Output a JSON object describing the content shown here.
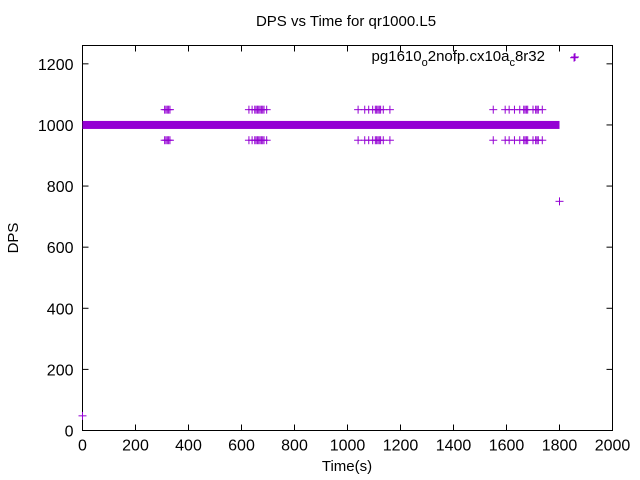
{
  "chart_data": {
    "type": "scatter",
    "title": "DPS vs Time for qr1000.L5",
    "xlabel": "Time(s)",
    "ylabel": "DPS",
    "xlim": [
      0,
      2000
    ],
    "ylim": [
      0,
      1260
    ],
    "xticks": [
      0,
      200,
      400,
      600,
      800,
      1000,
      1200,
      1400,
      1600,
      1800,
      2000
    ],
    "yticks": [
      0,
      200,
      400,
      600,
      800,
      1000,
      1200
    ],
    "grid": false,
    "legend_position": "top-right",
    "marker": "+",
    "color": "#9400d3",
    "series": [
      {
        "name_parts": [
          "pg1610",
          "o",
          "2nofp.cx10a",
          "c",
          "8r32"
        ],
        "dense_band": {
          "y": 1000,
          "x_start": 0,
          "x_end": 1800
        },
        "points": [
          [
            0,
            48
          ],
          [
            310,
            1050
          ],
          [
            315,
            1050
          ],
          [
            320,
            1050
          ],
          [
            325,
            1050
          ],
          [
            330,
            1050
          ],
          [
            310,
            950
          ],
          [
            315,
            950
          ],
          [
            320,
            950
          ],
          [
            325,
            950
          ],
          [
            330,
            950
          ],
          [
            628,
            1050
          ],
          [
            640,
            1050
          ],
          [
            650,
            1050
          ],
          [
            655,
            1050
          ],
          [
            660,
            1050
          ],
          [
            665,
            1050
          ],
          [
            670,
            1050
          ],
          [
            675,
            1050
          ],
          [
            680,
            1050
          ],
          [
            685,
            1050
          ],
          [
            695,
            1050
          ],
          [
            628,
            950
          ],
          [
            640,
            950
          ],
          [
            650,
            950
          ],
          [
            655,
            950
          ],
          [
            660,
            950
          ],
          [
            665,
            950
          ],
          [
            670,
            950
          ],
          [
            675,
            950
          ],
          [
            680,
            950
          ],
          [
            685,
            950
          ],
          [
            695,
            950
          ],
          [
            1040,
            1050
          ],
          [
            1065,
            1050
          ],
          [
            1080,
            1050
          ],
          [
            1095,
            1050
          ],
          [
            1105,
            1050
          ],
          [
            1110,
            1050
          ],
          [
            1115,
            1050
          ],
          [
            1120,
            1050
          ],
          [
            1125,
            1050
          ],
          [
            1135,
            1050
          ],
          [
            1160,
            1050
          ],
          [
            1040,
            950
          ],
          [
            1065,
            950
          ],
          [
            1080,
            950
          ],
          [
            1095,
            950
          ],
          [
            1105,
            950
          ],
          [
            1110,
            950
          ],
          [
            1115,
            950
          ],
          [
            1120,
            950
          ],
          [
            1125,
            950
          ],
          [
            1135,
            950
          ],
          [
            1160,
            950
          ],
          [
            1550,
            1050
          ],
          [
            1595,
            1050
          ],
          [
            1610,
            1050
          ],
          [
            1630,
            1050
          ],
          [
            1650,
            1050
          ],
          [
            1665,
            1050
          ],
          [
            1670,
            1050
          ],
          [
            1675,
            1050
          ],
          [
            1680,
            1050
          ],
          [
            1700,
            1050
          ],
          [
            1710,
            1050
          ],
          [
            1715,
            1050
          ],
          [
            1720,
            1050
          ],
          [
            1735,
            1050
          ],
          [
            1550,
            950
          ],
          [
            1595,
            950
          ],
          [
            1610,
            950
          ],
          [
            1630,
            950
          ],
          [
            1650,
            950
          ],
          [
            1665,
            950
          ],
          [
            1670,
            950
          ],
          [
            1675,
            950
          ],
          [
            1680,
            950
          ],
          [
            1700,
            950
          ],
          [
            1710,
            950
          ],
          [
            1715,
            950
          ],
          [
            1720,
            950
          ],
          [
            1735,
            950
          ],
          [
            1800,
            750
          ],
          [
            1855,
            1220
          ]
        ]
      }
    ]
  }
}
